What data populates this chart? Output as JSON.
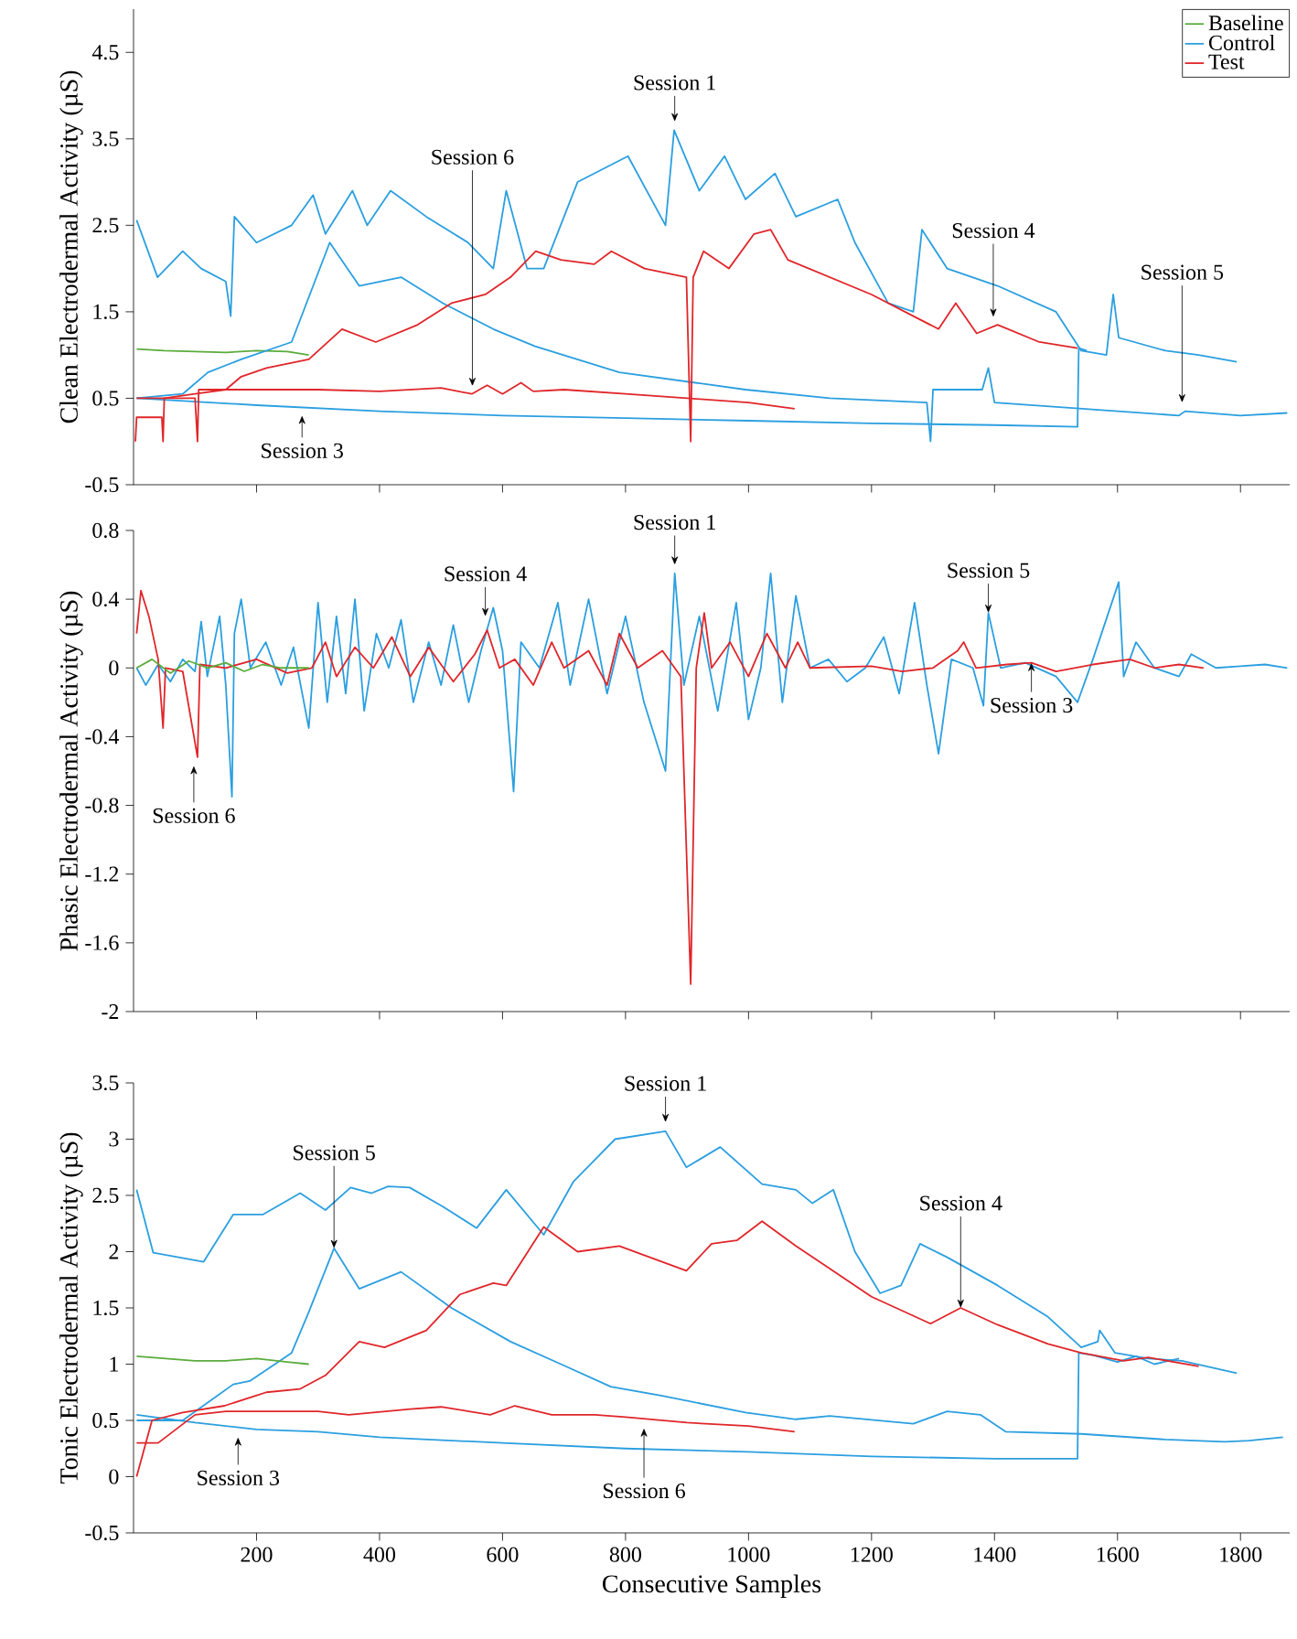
{
  "chart_data": [
    {
      "type": "line",
      "ylabel": "Clean Electrodermal Activity (µS)",
      "xlim": [
        0,
        1880
      ],
      "ylim": [
        -0.5,
        5
      ],
      "xticks": [
        200,
        400,
        600,
        800,
        1000,
        1200,
        1400,
        1600,
        1800
      ],
      "yticks": [
        -0.5,
        0.5,
        1.5,
        2.5,
        3.5,
        4.5
      ],
      "tick_labels": "y",
      "legend": "top right",
      "marker": "none",
      "series": [
        {
          "name": "Baseline",
          "color": "#5aac3c",
          "x": [
            5,
            50,
            100,
            150,
            200,
            250,
            285
          ],
          "values": [
            1.07,
            1.05,
            1.04,
            1.03,
            1.05,
            1.04,
            1.0
          ]
        },
        {
          "name": "Control",
          "color": "#2b9fe0",
          "x": [
            5,
            39,
            80,
            110,
            150,
            158,
            164,
            200,
            257,
            292,
            312,
            356,
            380,
            418,
            476,
            544,
            585,
            606,
            640,
            667,
            722,
            804,
            865,
            879,
            920,
            961,
            995,
            1043,
            1077,
            1145,
            1173,
            1227,
            1268,
            1282,
            1323,
            1405,
            1500,
            1541,
            1582,
            1593,
            1602,
            1678,
            1732,
            1794
          ],
          "values": [
            2.56,
            1.9,
            2.2,
            2.0,
            1.85,
            1.45,
            2.6,
            2.3,
            2.5,
            2.85,
            2.4,
            2.9,
            2.5,
            2.9,
            2.6,
            2.3,
            2.0,
            2.9,
            2.0,
            2.0,
            3.0,
            3.3,
            2.5,
            3.6,
            2.9,
            3.3,
            2.8,
            3.1,
            2.6,
            2.8,
            2.3,
            1.6,
            1.5,
            2.45,
            2.0,
            1.8,
            1.5,
            1.05,
            1.0,
            1.7,
            1.2,
            1.05,
            1.0,
            0.92
          ]
        },
        {
          "color": "#2b9fe0",
          "x": [
            5,
            80,
            121,
            175,
            257,
            319,
            367,
            435,
            503,
            585,
            653,
            790,
            995,
            1132,
            1290,
            1296,
            1300,
            1380,
            1390,
            1400,
            1500,
            1600,
            1700,
            1710,
            1800,
            1876
          ],
          "values": [
            0.5,
            0.55,
            0.8,
            0.95,
            1.15,
            2.3,
            1.8,
            1.9,
            1.6,
            1.3,
            1.1,
            0.8,
            0.6,
            0.5,
            0.45,
            0.0,
            0.6,
            0.6,
            0.85,
            0.45,
            0.4,
            0.35,
            0.3,
            0.35,
            0.3,
            0.33
          ]
        },
        {
          "color": "#2b9fe0",
          "x": [
            5,
            200,
            400,
            600,
            800,
            1000,
            1200,
            1400,
            1535,
            1537,
            1550
          ],
          "values": [
            0.5,
            0.42,
            0.35,
            0.3,
            0.27,
            0.24,
            0.21,
            0.19,
            0.17,
            1.08,
            1.05
          ]
        },
        {
          "name": "Test",
          "color": "#e0262a",
          "x": [
            5,
            50,
            100,
            150,
            175,
            216,
            285,
            339,
            394,
            462,
            517,
            572,
            613,
            654,
            695,
            749,
            777,
            831,
            899,
            906,
            910,
            927,
            968,
            1009,
            1036,
            1064,
            1132,
            1200,
            1268,
            1309,
            1337,
            1371,
            1405,
            1473,
            1535
          ],
          "values": [
            0.5,
            0.5,
            0.55,
            0.6,
            0.75,
            0.85,
            0.95,
            1.3,
            1.15,
            1.35,
            1.6,
            1.7,
            1.9,
            2.2,
            2.1,
            2.05,
            2.2,
            2.0,
            1.9,
            0.0,
            1.9,
            2.2,
            2.0,
            2.4,
            2.45,
            2.1,
            1.9,
            1.7,
            1.45,
            1.3,
            1.6,
            1.25,
            1.35,
            1.15,
            1.08
          ]
        },
        {
          "color": "#e0262a",
          "x": [
            3,
            5,
            46,
            48,
            50,
            100,
            104,
            106,
            200,
            300,
            400,
            500,
            550,
            575,
            600,
            630,
            650,
            700,
            800,
            900,
            1000,
            1075
          ],
          "values": [
            0.0,
            0.28,
            0.28,
            0.0,
            0.5,
            0.5,
            0.0,
            0.6,
            0.6,
            0.6,
            0.58,
            0.62,
            0.55,
            0.65,
            0.55,
            0.68,
            0.58,
            0.6,
            0.55,
            0.5,
            0.45,
            0.38
          ]
        }
      ],
      "annotations": [
        {
          "text": "Session 1",
          "x": 880,
          "y": 3.7
        },
        {
          "text": "Session 6",
          "x": 551,
          "y": 0.64
        },
        {
          "text": "Session 4",
          "x": 1398,
          "y": 1.44
        },
        {
          "text": "Session 5",
          "x": 1705,
          "y": 0.45
        },
        {
          "text": "Session 3",
          "x": 274,
          "y": 0.3
        }
      ]
    },
    {
      "type": "line",
      "ylabel": "Phasic Electrodermal Activity (µS)",
      "xlim": [
        0,
        1880
      ],
      "ylim": [
        -2,
        0.8
      ],
      "xticks": [
        200,
        400,
        600,
        800,
        1000,
        1200,
        1400,
        1600,
        1800
      ],
      "yticks": [
        -2,
        -1.6,
        -1.2,
        -0.8,
        -0.4,
        0,
        0.4,
        0.8
      ],
      "tick_labels": "y",
      "marker": "none",
      "series": [
        {
          "color": "#2b9fe0",
          "x": [
            5,
            20,
            40,
            60,
            80,
            100,
            110,
            120,
            140,
            150,
            160,
            164,
            175,
            190,
            215,
            240,
            260,
            285,
            300,
            315,
            330,
            345,
            360,
            375,
            395,
            415,
            435,
            455,
            480,
            500,
            520,
            545,
            565,
            585,
            600,
            618,
            630,
            660,
            690,
            710,
            740,
            770,
            800,
            830,
            865,
            880,
            895,
            920,
            950,
            980,
            1000,
            1020,
            1036,
            1055,
            1077,
            1100,
            1130,
            1160,
            1190,
            1220,
            1245,
            1270,
            1290,
            1309,
            1330,
            1365,
            1382,
            1390,
            1410,
            1450,
            1500,
            1535,
            1560,
            1602,
            1610,
            1630,
            1660,
            1700,
            1720,
            1760,
            1800,
            1840,
            1876
          ],
          "values": [
            0.0,
            -0.1,
            0.02,
            -0.08,
            0.05,
            -0.02,
            0.27,
            -0.05,
            0.3,
            -0.1,
            -0.75,
            0.2,
            0.4,
            0.0,
            0.15,
            -0.1,
            0.12,
            -0.35,
            0.38,
            -0.2,
            0.3,
            -0.15,
            0.4,
            -0.25,
            0.2,
            0.0,
            0.28,
            -0.2,
            0.15,
            -0.1,
            0.25,
            -0.2,
            0.1,
            0.35,
            0.1,
            -0.72,
            0.15,
            0.0,
            0.38,
            -0.1,
            0.4,
            -0.15,
            0.3,
            -0.2,
            -0.6,
            0.55,
            -0.1,
            0.3,
            -0.25,
            0.38,
            -0.3,
            0.0,
            0.55,
            -0.2,
            0.42,
            0.0,
            0.05,
            -0.08,
            0.0,
            0.18,
            -0.15,
            0.38,
            -0.1,
            -0.5,
            0.05,
            0.0,
            -0.22,
            0.32,
            0.0,
            0.03,
            -0.05,
            -0.2,
            0.05,
            0.5,
            -0.05,
            0.15,
            0.0,
            -0.05,
            0.08,
            0.0,
            0.01,
            0.02,
            0.0
          ]
        },
        {
          "color": "#e0262a",
          "x": [
            5,
            12,
            25,
            40,
            48,
            52,
            80,
            104,
            108,
            150,
            200,
            250,
            290,
            312,
            330,
            360,
            390,
            420,
            450,
            480,
            520,
            555,
            575,
            595,
            620,
            650,
            680,
            700,
            740,
            770,
            790,
            820,
            860,
            890,
            906,
            915,
            928,
            940,
            970,
            1000,
            1030,
            1060,
            1080,
            1100,
            1200,
            1250,
            1300,
            1340,
            1350,
            1370,
            1420,
            1460,
            1500,
            1560,
            1620,
            1660,
            1700,
            1740
          ],
          "values": [
            0.2,
            0.45,
            0.3,
            0.05,
            -0.35,
            0.0,
            -0.02,
            -0.52,
            0.02,
            0.0,
            0.05,
            -0.03,
            0.0,
            0.15,
            -0.05,
            0.12,
            0.0,
            0.18,
            -0.05,
            0.12,
            -0.08,
            0.08,
            0.22,
            0.0,
            0.05,
            -0.1,
            0.15,
            0.0,
            0.1,
            -0.1,
            0.2,
            0.0,
            0.1,
            -0.05,
            -1.84,
            0.0,
            0.32,
            0.0,
            0.15,
            -0.05,
            0.2,
            0.0,
            0.15,
            0.0,
            0.01,
            -0.02,
            0.0,
            0.1,
            0.15,
            0.0,
            0.02,
            0.03,
            -0.02,
            0.02,
            0.05,
            0.0,
            0.02,
            0.0
          ]
        },
        {
          "color": "#5aac3c",
          "x": [
            5,
            30,
            60,
            90,
            120,
            150,
            180,
            210,
            240,
            285
          ],
          "values": [
            0.0,
            0.05,
            -0.03,
            0.04,
            0.0,
            0.03,
            -0.02,
            0.02,
            0.0,
            0.0
          ]
        }
      ],
      "annotations": [
        {
          "text": "Session 1",
          "x": 880,
          "y": 0.6
        },
        {
          "text": "Session 4",
          "x": 572,
          "y": 0.3
        },
        {
          "text": "Session 5",
          "x": 1390,
          "y": 0.32
        },
        {
          "text": "Session 3",
          "x": 1460,
          "y": 0.03
        },
        {
          "text": "Session 6",
          "x": 98,
          "y": -0.57
        }
      ]
    },
    {
      "type": "line",
      "ylabel": "Tonic Electrodermal Activity (µS)",
      "xlabel": "Consecutive Samples",
      "xlim": [
        0,
        1880
      ],
      "ylim": [
        -0.5,
        3.5
      ],
      "xticks": [
        200,
        400,
        600,
        800,
        1000,
        1200,
        1400,
        1600,
        1800
      ],
      "yticks": [
        -0.5,
        0,
        0.5,
        1,
        1.5,
        2,
        2.5,
        3,
        3.5
      ],
      "marker": "none",
      "series": [
        {
          "color": "#2b9fe0",
          "x": [
            5,
            32,
            114,
            162,
            210,
            271,
            312,
            353,
            387,
            414,
            449,
            503,
            558,
            606,
            667,
            715,
            783,
            865,
            899,
            954,
            1022,
            1077,
            1104,
            1138,
            1173,
            1214,
            1248,
            1279,
            1323,
            1405,
            1487,
            1541,
            1568,
            1571,
            1596,
            1650,
            1705,
            1794
          ],
          "values": [
            2.55,
            1.99,
            1.91,
            2.33,
            2.33,
            2.52,
            2.37,
            2.57,
            2.52,
            2.58,
            2.57,
            2.4,
            2.21,
            2.55,
            2.15,
            2.62,
            3.0,
            3.07,
            2.75,
            2.93,
            2.6,
            2.55,
            2.43,
            2.55,
            2.0,
            1.63,
            1.7,
            2.07,
            1.95,
            1.7,
            1.42,
            1.15,
            1.2,
            1.3,
            1.1,
            1.05,
            1.03,
            0.92
          ]
        },
        {
          "color": "#2b9fe0",
          "x": [
            5,
            80,
            162,
            189,
            257,
            284,
            326,
            367,
            435,
            517,
            613,
            695,
            776,
            858,
            995,
            1077,
            1132,
            1268,
            1323,
            1377,
            1418,
            1541,
            1678,
            1774,
            1814,
            1869
          ],
          "values": [
            0.5,
            0.5,
            0.82,
            0.85,
            1.1,
            1.45,
            2.03,
            1.67,
            1.82,
            1.5,
            1.2,
            1.0,
            0.8,
            0.72,
            0.57,
            0.51,
            0.54,
            0.47,
            0.58,
            0.55,
            0.4,
            0.38,
            0.33,
            0.31,
            0.32,
            0.35
          ]
        },
        {
          "color": "#2b9fe0",
          "x": [
            5,
            100,
            200,
            300,
            400,
            600,
            800,
            1000,
            1200,
            1400,
            1535,
            1537,
            1560,
            1600,
            1630,
            1660,
            1700
          ],
          "values": [
            0.55,
            0.48,
            0.42,
            0.4,
            0.35,
            0.3,
            0.25,
            0.22,
            0.18,
            0.16,
            0.16,
            1.1,
            1.08,
            1.02,
            1.07,
            1.0,
            1.05
          ]
        },
        {
          "color": "#e0262a",
          "x": [
            5,
            30,
            80,
            148,
            216,
            271,
            312,
            367,
            408,
            476,
            531,
            585,
            606,
            667,
            722,
            790,
            899,
            940,
            981,
            1022,
            1077,
            1132,
            1200,
            1296,
            1345,
            1405,
            1487,
            1541,
            1610,
            1650,
            1732
          ],
          "values": [
            0.0,
            0.5,
            0.57,
            0.63,
            0.75,
            0.78,
            0.9,
            1.2,
            1.15,
            1.3,
            1.62,
            1.72,
            1.7,
            2.22,
            2.0,
            2.05,
            1.83,
            2.07,
            2.1,
            2.27,
            2.05,
            1.85,
            1.6,
            1.36,
            1.5,
            1.35,
            1.18,
            1.1,
            1.03,
            1.06,
            0.98
          ]
        },
        {
          "color": "#e0262a",
          "x": [
            5,
            40,
            100,
            150,
            300,
            350,
            450,
            500,
            580,
            620,
            680,
            750,
            800,
            900,
            1000,
            1075
          ],
          "values": [
            0.3,
            0.3,
            0.55,
            0.58,
            0.58,
            0.55,
            0.6,
            0.62,
            0.55,
            0.63,
            0.55,
            0.55,
            0.53,
            0.48,
            0.45,
            0.4
          ]
        },
        {
          "color": "#5aac3c",
          "x": [
            5,
            100,
            150,
            200,
            250,
            285
          ],
          "values": [
            1.07,
            1.03,
            1.03,
            1.05,
            1.02,
            1.0
          ]
        }
      ],
      "annotations": [
        {
          "text": "Session 1",
          "x": 865,
          "y": 3.15
        },
        {
          "text": "Session 5",
          "x": 326,
          "y": 2.03
        },
        {
          "text": "Session 4",
          "x": 1345,
          "y": 1.5
        },
        {
          "text": "Session 3",
          "x": 170,
          "y": 0.35
        },
        {
          "text": "Session 6",
          "x": 830,
          "y": 0.43
        }
      ]
    }
  ]
}
